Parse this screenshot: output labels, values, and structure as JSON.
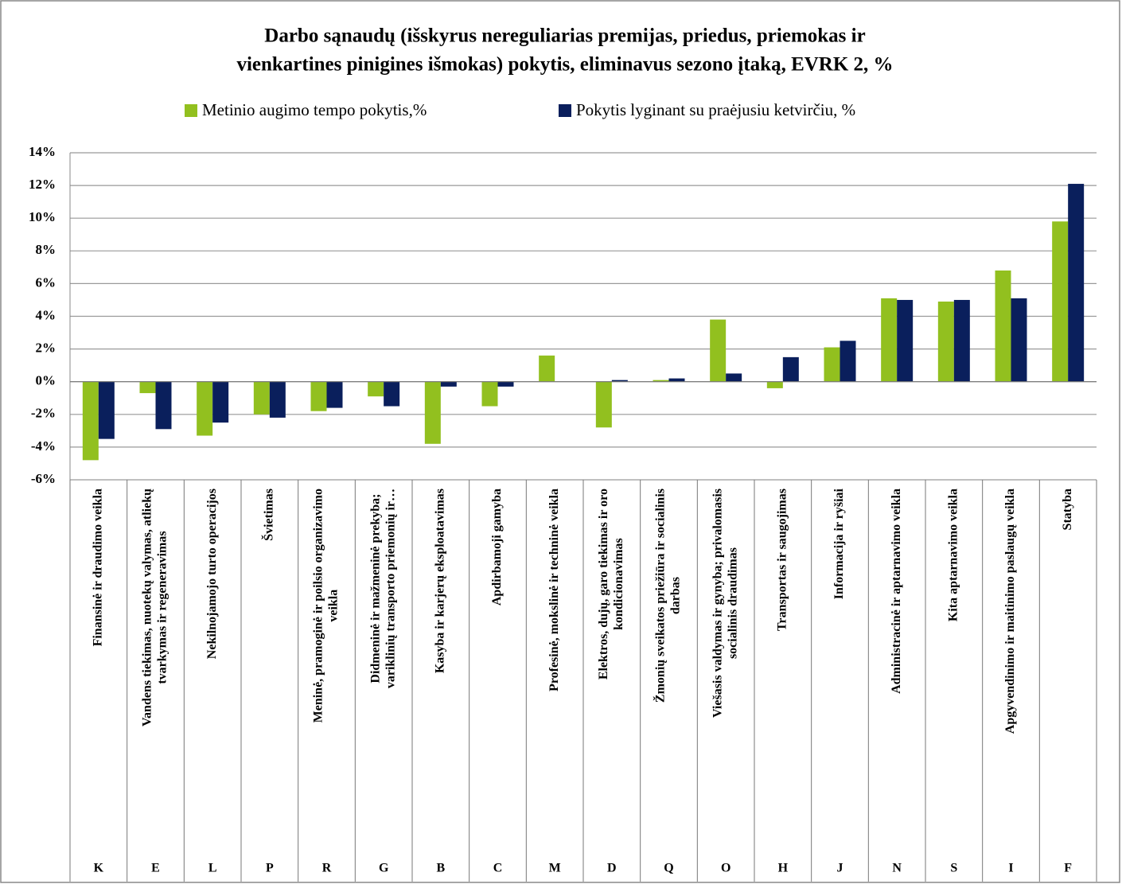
{
  "chart_data": {
    "type": "bar",
    "title": [
      "Darbo sąnaudų (išskyrus nereguliarias premijas, priedus, priemokas ir",
      "vienkartines pinigines išmokas) pokytis, eliminavus sezono įtaką,  EVRK 2, %"
    ],
    "categories": [
      [
        "Finansinė ir draudimo veikla"
      ],
      [
        "Vandens tiekimas, nuotekų valymas, atliekų",
        "tvarkymas ir regeneravimas"
      ],
      [
        "Nekilnojamojo turto operacijos"
      ],
      [
        "Švietimas"
      ],
      [
        "Meninė, pramoginė ir poilsio organizavimo",
        "veikla"
      ],
      [
        "Didmeninė ir mažmeninė prekyba;",
        "variklinių transporto priemonių ir…"
      ],
      [
        "Kasyba ir karjerų eksploatavimas"
      ],
      [
        "Apdirbamoji gamyba"
      ],
      [
        "Profesinė, mokslinė ir techninė veikla"
      ],
      [
        "Elektros, dujų, garo tiekimas ir oro",
        "kondicionavimas"
      ],
      [
        "Žmonių sveikatos priežiūra ir socialinis",
        "darbas"
      ],
      [
        "Viešasis valdymas ir gynyba; privalomasis",
        "socialinis draudimas"
      ],
      [
        "Transportas ir saugojimas"
      ],
      [
        "Informacija ir ryšiai"
      ],
      [
        "Administracinė ir aptarnavimo veikla"
      ],
      [
        "Kita aptarnavimo veikla"
      ],
      [
        "Apgyvendinimo ir maitinimo paslaugų veikla"
      ],
      [
        "Statyba"
      ]
    ],
    "codes": [
      "K",
      "E",
      "L",
      "P",
      "R",
      "G",
      "B",
      "C",
      "M",
      "D",
      "Q",
      "O",
      "H",
      "J",
      "N",
      "S",
      "I",
      "F"
    ],
    "series": [
      {
        "name": "Metinio augimo tempo pokytis,%",
        "color": "#92c01f",
        "values": [
          -4.8,
          -0.7,
          -3.3,
          -2.0,
          -1.8,
          -0.9,
          -3.8,
          -1.5,
          1.6,
          -2.8,
          0.1,
          3.8,
          -0.4,
          2.1,
          5.1,
          4.9,
          6.8,
          9.8
        ]
      },
      {
        "name": "Pokytis lyginant su praėjusiu ketvirčiu, %",
        "color": "#0a1f5c",
        "values": [
          -3.5,
          -2.9,
          -2.5,
          -2.2,
          -1.6,
          -1.5,
          -0.3,
          -0.3,
          0,
          0.1,
          0.2,
          0.5,
          1.5,
          2.5,
          5.0,
          5.0,
          5.1,
          12.1
        ]
      }
    ],
    "ylim": [
      -6,
      14
    ],
    "yticks": [
      {
        "value": -6,
        "label": "-6%"
      },
      {
        "value": -4,
        "label": "-4%"
      },
      {
        "value": -2,
        "label": "-2%"
      },
      {
        "value": 0,
        "label": "0%"
      },
      {
        "value": 2,
        "label": "2%"
      },
      {
        "value": 4,
        "label": "4%"
      },
      {
        "value": 6,
        "label": "6%"
      },
      {
        "value": 8,
        "label": "8%"
      },
      {
        "value": 10,
        "label": "10%"
      },
      {
        "value": 12,
        "label": "12%"
      },
      {
        "value": 14,
        "label": "14%"
      }
    ],
    "grid": true
  }
}
